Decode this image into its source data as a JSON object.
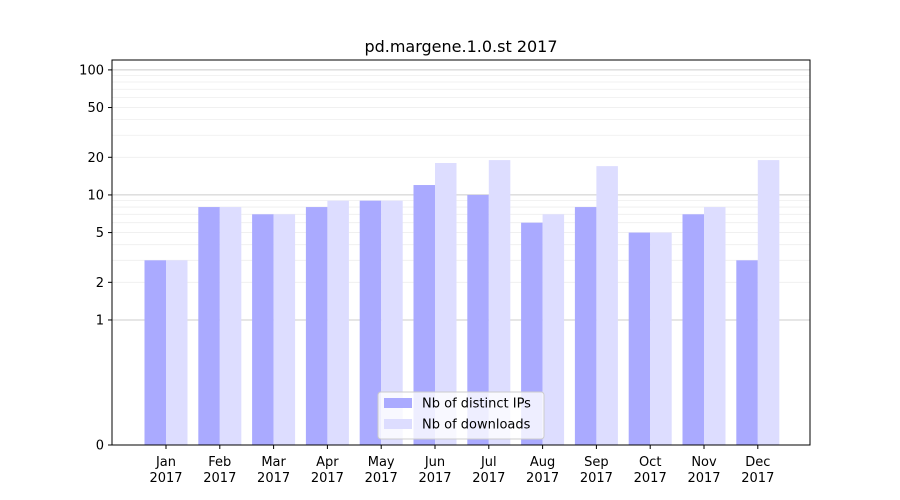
{
  "chart_data": {
    "type": "bar",
    "title": "pd.margene.1.0.st 2017",
    "xlabel": "",
    "ylabel": "",
    "y_scale": "symlog",
    "ylim": [
      0,
      120
    ],
    "yticks": [
      0,
      1,
      2,
      5,
      10,
      20,
      50,
      100
    ],
    "ytick_labels": [
      "0",
      "1",
      "2",
      "5",
      "10",
      "20",
      "50",
      "100"
    ],
    "categories": [
      "Jan\n2017",
      "Feb\n2017",
      "Mar\n2017",
      "Apr\n2017",
      "May\n2017",
      "Jun\n2017",
      "Jul\n2017",
      "Aug\n2017",
      "Sep\n2017",
      "Oct\n2017",
      "Nov\n2017",
      "Dec\n2017"
    ],
    "category_lines": [
      [
        "Jan",
        "2017"
      ],
      [
        "Feb",
        "2017"
      ],
      [
        "Mar",
        "2017"
      ],
      [
        "Apr",
        "2017"
      ],
      [
        "May",
        "2017"
      ],
      [
        "Jun",
        "2017"
      ],
      [
        "Jul",
        "2017"
      ],
      [
        "Aug",
        "2017"
      ],
      [
        "Sep",
        "2017"
      ],
      [
        "Oct",
        "2017"
      ],
      [
        "Nov",
        "2017"
      ],
      [
        "Dec",
        "2017"
      ]
    ],
    "series": [
      {
        "name": "Nb of distinct IPs",
        "color": "#aaaaff",
        "values": [
          3,
          8,
          7,
          8,
          9,
          12,
          10,
          6,
          8,
          5,
          7,
          3
        ]
      },
      {
        "name": "Nb of downloads",
        "color": "#ddddff",
        "values": [
          3,
          8,
          7,
          9,
          9,
          18,
          19,
          7,
          17,
          5,
          8,
          19
        ]
      }
    ],
    "grid": true,
    "legend_position": "bottom-center"
  }
}
